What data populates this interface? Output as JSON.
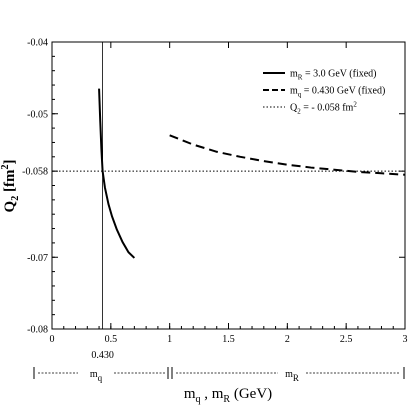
{
  "chart_data": {
    "type": "line",
    "xlabel": {
      "main": "m",
      "sub1": "q",
      "mid": " , m",
      "sub2": "R",
      "tail": " (GeV)"
    },
    "ylabel": {
      "main": "Q",
      "sub": "2",
      "mid": " [fm",
      "sup": "2",
      "tail": "]"
    },
    "xlim": [
      0,
      3
    ],
    "ylim": [
      -0.08,
      -0.04
    ],
    "x_ticks": [
      {
        "value": 0,
        "label": "0"
      },
      {
        "value": 0.5,
        "label": "0.5"
      },
      {
        "value": 1,
        "label": "1"
      },
      {
        "value": 1.5,
        "label": "1.5"
      },
      {
        "value": 2,
        "label": "2"
      },
      {
        "value": 2.5,
        "label": "2.5"
      },
      {
        "value": 3,
        "label": "3"
      }
    ],
    "y_ticks": [
      {
        "value": -0.08,
        "label": "-0.08"
      },
      {
        "value": -0.07,
        "label": "-0.07"
      },
      {
        "value": -0.058,
        "label": "-0.058"
      },
      {
        "value": -0.05,
        "label": "-0.05"
      },
      {
        "value": -0.04,
        "label": "-0.04"
      }
    ],
    "series": [
      {
        "legend": {
          "main": "m",
          "sub": "R",
          "text": " = 3.0 GeV (fixed)"
        },
        "style": "solid",
        "x": [
          0.4,
          0.41,
          0.42,
          0.43,
          0.45,
          0.48,
          0.51,
          0.55,
          0.6,
          0.65,
          0.7
        ],
        "y": [
          -0.0465,
          -0.051,
          -0.055,
          -0.058,
          -0.0603,
          -0.0626,
          -0.0643,
          -0.0661,
          -0.0679,
          -0.0693,
          -0.0701
        ]
      },
      {
        "legend": {
          "main": "m",
          "sub": "q",
          "text": " = 0.430 GeV (fixed)"
        },
        "style": "dashed",
        "x": [
          1.0,
          1.2,
          1.4,
          1.6,
          1.8,
          2.0,
          2.2,
          2.4,
          2.6,
          2.8,
          3.0
        ],
        "y": [
          -0.053,
          -0.0543,
          -0.0553,
          -0.056,
          -0.0566,
          -0.0571,
          -0.0575,
          -0.0578,
          -0.0581,
          -0.0583,
          -0.0585
        ]
      },
      {
        "legend": {
          "main": "Q",
          "sub": "2",
          "text": " = - 0.058 fm",
          "sup": "2"
        },
        "style": "dotted",
        "x": [
          0,
          3
        ],
        "y": [
          -0.058,
          -0.058
        ]
      }
    ],
    "vertical_line": {
      "x": 0.43,
      "label": "0.430"
    },
    "range_annotations": {
      "mq": {
        "main": "m",
        "sub": "q",
        "from": 0,
        "to": 1
      },
      "mR": {
        "main": "m",
        "sub": "R",
        "from": 1,
        "to": 3
      }
    }
  },
  "colors": {
    "line": "#000000",
    "background": "#ffffff"
  }
}
